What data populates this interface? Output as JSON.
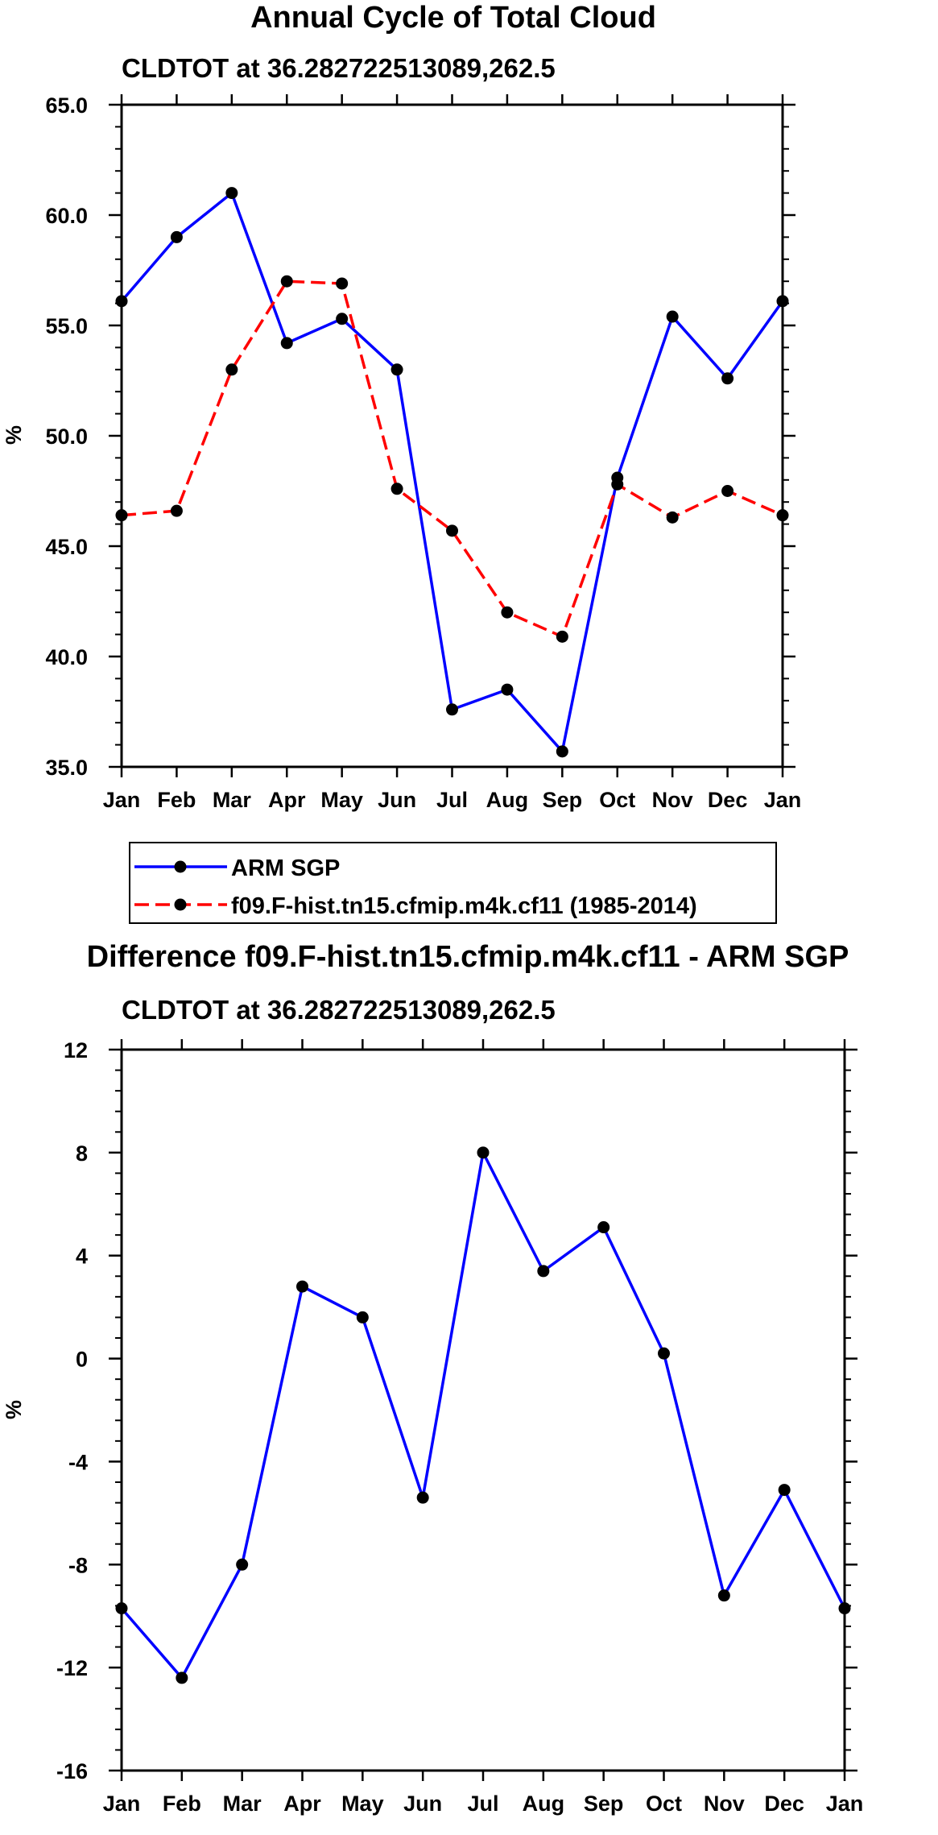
{
  "chart_data": [
    {
      "type": "line",
      "title": "Annual Cycle of Total Cloud",
      "subtitle": "CLDTOT at 36.282722513089,262.5",
      "xlabel": "",
      "ylabel": "%",
      "categories": [
        "Jan",
        "Feb",
        "Mar",
        "Apr",
        "May",
        "Jun",
        "Jul",
        "Aug",
        "Sep",
        "Oct",
        "Nov",
        "Dec",
        "Jan"
      ],
      "ylim": [
        35.0,
        65.0
      ],
      "yticks": [
        35.0,
        40.0,
        45.0,
        50.0,
        55.0,
        60.0,
        65.0
      ],
      "ytick_labels": [
        "35.0",
        "40.0",
        "45.0",
        "50.0",
        "55.0",
        "60.0",
        "65.0"
      ],
      "grid": false,
      "legend_position": "bottom",
      "series": [
        {
          "name": "ARM SGP",
          "color": "#0000ff",
          "dash": "solid",
          "values": [
            56.1,
            59.0,
            61.0,
            54.2,
            55.3,
            53.0,
            37.6,
            38.5,
            35.7,
            48.1,
            55.4,
            52.6,
            56.1
          ]
        },
        {
          "name": "f09.F-hist.tn15.cfmip.m4k.cf11 (1985-2014)",
          "color": "#ff0000",
          "dash": "dashed",
          "values": [
            46.4,
            46.6,
            53.0,
            57.0,
            56.9,
            47.6,
            45.7,
            42.0,
            40.9,
            47.8,
            46.3,
            47.5,
            46.4
          ]
        }
      ]
    },
    {
      "type": "line",
      "title": "Difference f09.F-hist.tn15.cfmip.m4k.cf11 - ARM SGP",
      "subtitle": "CLDTOT at 36.282722513089,262.5",
      "xlabel": "",
      "ylabel": "%",
      "categories": [
        "Jan",
        "Feb",
        "Mar",
        "Apr",
        "May",
        "Jun",
        "Jul",
        "Aug",
        "Sep",
        "Oct",
        "Nov",
        "Dec",
        "Jan"
      ],
      "ylim": [
        -16,
        12
      ],
      "yticks": [
        -16,
        -12,
        -8,
        -4,
        0,
        4,
        8,
        12
      ],
      "ytick_labels": [
        "-16",
        "-12",
        "-8",
        "-4",
        "0",
        "4",
        "8",
        "12"
      ],
      "grid": false,
      "series": [
        {
          "name": "Difference",
          "color": "#0000ff",
          "dash": "solid",
          "values": [
            -9.7,
            -12.4,
            -8.0,
            2.8,
            1.6,
            -5.4,
            8.0,
            3.4,
            5.1,
            0.2,
            -9.2,
            -5.1,
            -9.7
          ]
        }
      ]
    }
  ]
}
